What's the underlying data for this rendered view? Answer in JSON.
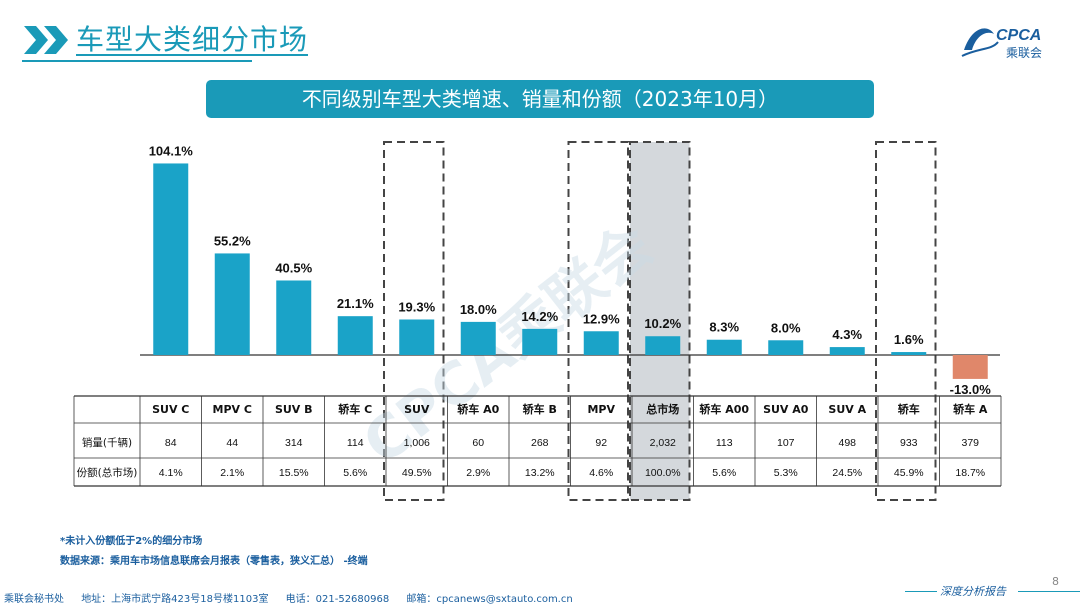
{
  "header": {
    "title": "车型大类细分市场",
    "logo_text": "CPCA",
    "logo_sub": "乘联会"
  },
  "banner": {
    "text": "不同级别车型大类增速、销量和份额（2023年10月）"
  },
  "table": {
    "row_labels": [
      "销量(千辆)",
      "份额(总市场)"
    ]
  },
  "chart_data": {
    "type": "bar",
    "title": "不同级别车型大类增速、销量和份额（2023年10月）",
    "categories": [
      "SUV C",
      "MPV C",
      "SUV B",
      "轿车 C",
      "SUV",
      "轿车 A0",
      "轿车 B",
      "MPV",
      "总市场",
      "轿车 A00",
      "SUV A0",
      "SUV A",
      "轿车",
      "轿车 A"
    ],
    "series": [
      {
        "name": "增速",
        "values": [
          104.1,
          55.2,
          40.5,
          21.1,
          19.3,
          18.0,
          14.2,
          12.9,
          10.2,
          8.3,
          8.0,
          4.3,
          1.6,
          -13.0
        ]
      }
    ],
    "data_labels": [
      "104.1%",
      "55.2%",
      "40.5%",
      "21.1%",
      "19.3%",
      "18.0%",
      "14.2%",
      "12.9%",
      "10.2%",
      "8.3%",
      "8.0%",
      "4.3%",
      "1.6%",
      "-13.0%"
    ],
    "sales_k": [
      "84",
      "44",
      "314",
      "114",
      "1,006",
      "60",
      "268",
      "92",
      "2,032",
      "113",
      "107",
      "498",
      "933",
      "379"
    ],
    "share": [
      "4.1%",
      "2.1%",
      "15.5%",
      "5.6%",
      "49.5%",
      "2.9%",
      "13.2%",
      "4.6%",
      "100.0%",
      "5.6%",
      "5.3%",
      "24.5%",
      "45.9%",
      "18.7%"
    ],
    "highlighted": [
      "SUV",
      "MPV",
      "总市场",
      "轿车"
    ],
    "colors": {
      "bar": "#1aa3c8",
      "negative": "#e0876a",
      "accent": "#1a9ab8"
    }
  },
  "watermark": "CPCA乘联会",
  "notes": {
    "note1": "*未计入份额低于2%的细分市场",
    "note2": "数据来源：乘用车市场信息联席会月报表（零售表，狭义汇总）  -终端"
  },
  "footer": {
    "org": "乘联会秘书处",
    "address": "地址：上海市武宁路423号18号楼1103室",
    "phone": "电话：021-52680968",
    "email": "邮箱：cpcanews@sxtauto.com.cn",
    "report_tag": "深度分析报告",
    "page_number": "8"
  }
}
